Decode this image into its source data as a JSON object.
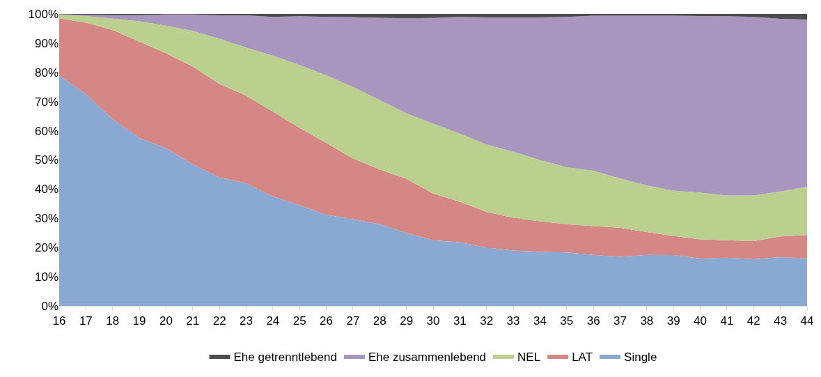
{
  "chart_data": {
    "type": "area",
    "stacked": true,
    "x": [
      16,
      17,
      18,
      19,
      20,
      21,
      22,
      23,
      24,
      25,
      26,
      27,
      28,
      29,
      30,
      31,
      32,
      33,
      34,
      35,
      36,
      37,
      38,
      39,
      40,
      41,
      42,
      43,
      44
    ],
    "series": [
      {
        "name": "Single",
        "color": "#8aa9d2",
        "values": [
          79,
          72.5,
          64,
          57.5,
          54,
          48.5,
          44,
          42,
          37.5,
          34.5,
          31.2,
          29.7,
          28,
          25,
          22.5,
          21.8,
          20,
          19,
          18.5,
          18.3,
          17.5,
          16.8,
          17.5,
          17.4,
          16.2,
          16.5,
          16,
          16.7,
          16.3
        ]
      },
      {
        "name": "LAT",
        "color": "#d48785",
        "values": [
          19.5,
          24.5,
          30.5,
          33,
          32.5,
          33.5,
          32,
          30,
          29,
          26.5,
          24.6,
          20.8,
          18.7,
          18.5,
          16,
          13.9,
          12.2,
          11.2,
          10.5,
          9.7,
          9.8,
          10,
          7.8,
          6.6,
          6.6,
          6,
          6.2,
          7.1,
          8
        ]
      },
      {
        "name": "NEL",
        "color": "#bbd08f",
        "values": [
          1.3,
          2.3,
          3.9,
          7,
          9.5,
          12.2,
          15.5,
          16.5,
          19.2,
          21.5,
          23.2,
          24.5,
          23.8,
          22.5,
          24,
          23.3,
          23.1,
          22.6,
          21,
          19.5,
          19,
          16.9,
          16,
          15.5,
          16,
          15.3,
          15.6,
          15.4,
          16.5
        ]
      },
      {
        "name": "Ehe zusammenlebend",
        "color": "#a896bf",
        "values": [
          0.1,
          0.4,
          1.2,
          2.1,
          3.8,
          5.6,
          8,
          11,
          13.3,
          16.7,
          20,
          23.9,
          28.2,
          32.5,
          36.1,
          40,
          43.5,
          46,
          48.8,
          51.5,
          53.1,
          55.7,
          58.1,
          59.9,
          60.5,
          61.4,
          61.2,
          59.1,
          57.3
        ]
      },
      {
        "name": "Ehe getrenntlebend",
        "color": "#4d4d4d",
        "values": [
          0.2,
          0.3,
          0.4,
          0.4,
          0.2,
          0.2,
          0.5,
          0.5,
          1,
          0.8,
          1,
          1.1,
          1.3,
          1.5,
          1.4,
          1,
          1.2,
          1.2,
          1.2,
          1,
          0.6,
          0.6,
          0.6,
          0.6,
          0.7,
          0.8,
          1,
          1.7,
          1.9
        ]
      }
    ],
    "xlim": [
      16,
      44
    ],
    "xticks": [
      16,
      17,
      18,
      19,
      20,
      21,
      22,
      23,
      24,
      25,
      26,
      27,
      28,
      29,
      30,
      31,
      32,
      33,
      34,
      35,
      36,
      37,
      38,
      39,
      40,
      41,
      42,
      43,
      44
    ],
    "ylim": [
      0,
      100
    ],
    "yticks": [
      {
        "value": 0,
        "label": "0%"
      },
      {
        "value": 10,
        "label": "10%"
      },
      {
        "value": 20,
        "label": "20%"
      },
      {
        "value": 30,
        "label": "30%"
      },
      {
        "value": 40,
        "label": "40%"
      },
      {
        "value": 50,
        "label": "50%"
      },
      {
        "value": 60,
        "label": "60%"
      },
      {
        "value": 70,
        "label": "70%"
      },
      {
        "value": 80,
        "label": "80%"
      },
      {
        "value": 90,
        "label": "90%"
      },
      {
        "value": 100,
        "label": "100%"
      }
    ],
    "grid": "y",
    "legend": "bottom"
  }
}
